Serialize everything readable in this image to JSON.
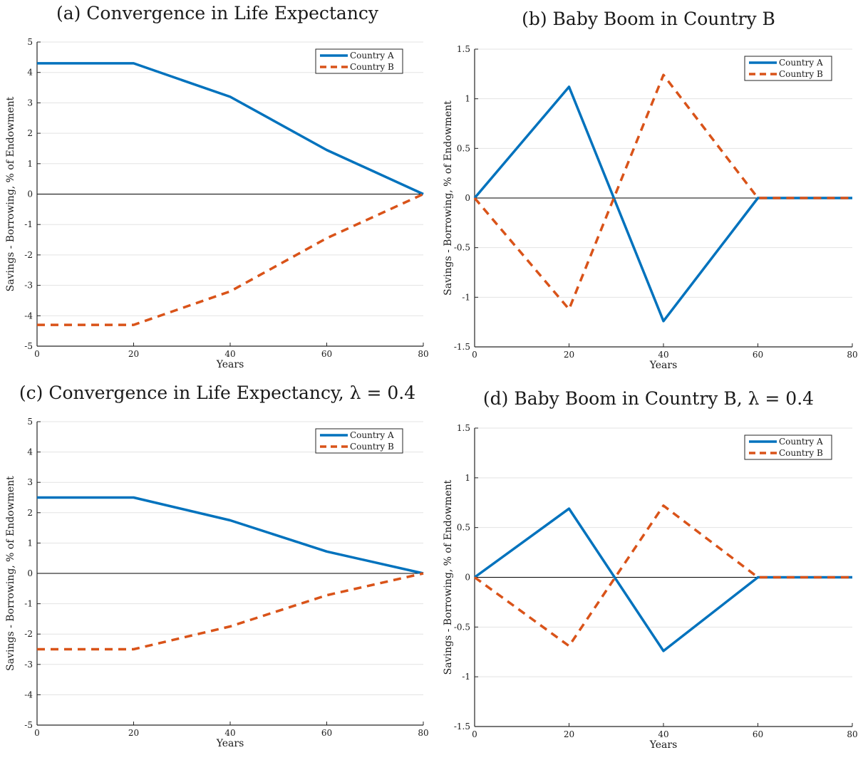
{
  "chart_data": [
    {
      "type": "line",
      "title": "(a) Convergence in Life Expectancy",
      "xlabel": "Years",
      "ylabel": "Savings - Borrowing, % of Endowment",
      "xlim": [
        0,
        80
      ],
      "ylim": [
        -5,
        5
      ],
      "xticks": [
        "0",
        "20",
        "40",
        "60",
        "80"
      ],
      "yticks": [
        "5",
        "4",
        "3",
        "2",
        "1",
        "0",
        "-1",
        "-2",
        "-3",
        "-4",
        "-5"
      ],
      "grid": "horizontal",
      "legend": "top-right",
      "x": [
        0,
        20,
        40,
        60,
        80
      ],
      "series": [
        {
          "name": "Country A",
          "values": [
            4.3,
            4.3,
            3.2,
            1.45,
            0
          ],
          "color": "#0072BD",
          "style": "solid"
        },
        {
          "name": "Country B",
          "values": [
            -4.3,
            -4.3,
            -3.2,
            -1.45,
            0
          ],
          "color": "#D95319",
          "style": "dashed"
        }
      ]
    },
    {
      "type": "line",
      "title": "(b) Baby Boom in Country B",
      "xlabel": "Years",
      "ylabel": "Savings - Borrowing, % of Endowment",
      "xlim": [
        0,
        80
      ],
      "ylim": [
        -1.5,
        1.5
      ],
      "xticks": [
        "0",
        "20",
        "40",
        "60",
        "80"
      ],
      "yticks": [
        "1.5",
        "1",
        "0.5",
        "0",
        "-0.5",
        "-1",
        "-1.5"
      ],
      "grid": "horizontal",
      "legend": "top-right",
      "x": [
        0,
        20,
        40,
        60,
        80
      ],
      "series": [
        {
          "name": "Country A",
          "values": [
            0,
            1.12,
            -1.24,
            0,
            0
          ],
          "color": "#0072BD",
          "style": "solid"
        },
        {
          "name": "Country B",
          "values": [
            0,
            -1.12,
            1.24,
            0,
            0
          ],
          "color": "#D95319",
          "style": "dashed"
        }
      ]
    },
    {
      "type": "line",
      "title": "(c) Convergence in Life Expectancy, λ = 0.4",
      "xlabel": "Years",
      "ylabel": "Savings - Borrowing, % of Endowment",
      "xlim": [
        0,
        80
      ],
      "ylim": [
        -5,
        5
      ],
      "xticks": [
        "0",
        "20",
        "40",
        "60",
        "80"
      ],
      "yticks": [
        "5",
        "4",
        "3",
        "2",
        "1",
        "0",
        "-1",
        "-2",
        "-3",
        "-4",
        "-5"
      ],
      "grid": "horizontal",
      "legend": "top-right",
      "x": [
        0,
        20,
        40,
        60,
        80
      ],
      "series": [
        {
          "name": "Country A",
          "values": [
            2.5,
            2.5,
            1.75,
            0.72,
            0
          ],
          "color": "#0072BD",
          "style": "solid"
        },
        {
          "name": "Country B",
          "values": [
            -2.5,
            -2.5,
            -1.75,
            -0.72,
            0
          ],
          "color": "#D95319",
          "style": "dashed"
        }
      ]
    },
    {
      "type": "line",
      "title": "(d) Baby Boom in Country B, λ = 0.4",
      "xlabel": "Years",
      "ylabel": "Savings - Borrowing, % of Endowment",
      "xlim": [
        0,
        80
      ],
      "ylim": [
        -1.5,
        1.5
      ],
      "xticks": [
        "0",
        "20",
        "40",
        "60",
        "80"
      ],
      "yticks": [
        "1.5",
        "1",
        "0.5",
        "0",
        "-0.5",
        "-1",
        "-1.5"
      ],
      "grid": "horizontal",
      "legend": "top-right",
      "x": [
        0,
        20,
        40,
        60,
        80
      ],
      "series": [
        {
          "name": "Country A",
          "values": [
            0,
            0.69,
            -0.74,
            0,
            0
          ],
          "color": "#0072BD",
          "style": "solid"
        },
        {
          "name": "Country B",
          "values": [
            0,
            -0.69,
            0.72,
            0,
            0
          ],
          "color": "#D95319",
          "style": "dashed"
        }
      ]
    }
  ]
}
